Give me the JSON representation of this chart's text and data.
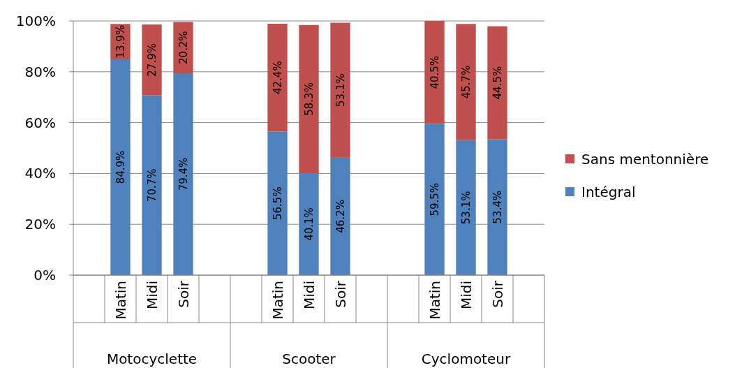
{
  "chart_data": {
    "type": "bar",
    "stacked": true,
    "categories": [
      null,
      "Matin",
      "Midi",
      "Soir",
      null,
      null,
      "Matin",
      "Midi",
      "Soir",
      null,
      null,
      "Matin",
      "Midi",
      "Soir",
      null
    ],
    "series": [
      {
        "name": "Intégral",
        "color": "#4f81bd",
        "values": [
          null,
          84.9,
          70.7,
          79.4,
          null,
          null,
          56.5,
          40.1,
          46.2,
          null,
          null,
          59.5,
          53.1,
          53.4,
          null
        ],
        "value_labels": [
          null,
          "84.9%",
          "70.7%",
          "79.4%",
          null,
          null,
          "56.5%",
          "40.1%",
          "46.2%",
          null,
          null,
          "59.5%",
          "53.1%",
          "53.4%",
          null
        ]
      },
      {
        "name": "Sans mentonnière",
        "color": "#c0504d",
        "values": [
          null,
          13.9,
          27.9,
          20.2,
          null,
          null,
          42.4,
          58.3,
          53.1,
          null,
          null,
          40.5,
          45.7,
          44.5,
          null
        ],
        "value_labels": [
          null,
          "13.9%",
          "27.9%",
          "20.2%",
          null,
          null,
          "42.4%",
          "58.3%",
          "53.1%",
          null,
          null,
          "40.5%",
          "45.7%",
          "44.5%",
          null
        ]
      }
    ],
    "ylim": [
      0,
      100
    ],
    "yticks": [
      {
        "value": 0,
        "label": "0%"
      },
      {
        "value": 20,
        "label": "20%"
      },
      {
        "value": 40,
        "label": "40%"
      },
      {
        "value": 60,
        "label": "60%"
      },
      {
        "value": 80,
        "label": "80%"
      },
      {
        "value": 100,
        "label": "100%"
      }
    ],
    "grid": "y",
    "legend": "right",
    "annotations": [
      "Motocyclette",
      "Scooter",
      "Cyclomoteur"
    ]
  }
}
